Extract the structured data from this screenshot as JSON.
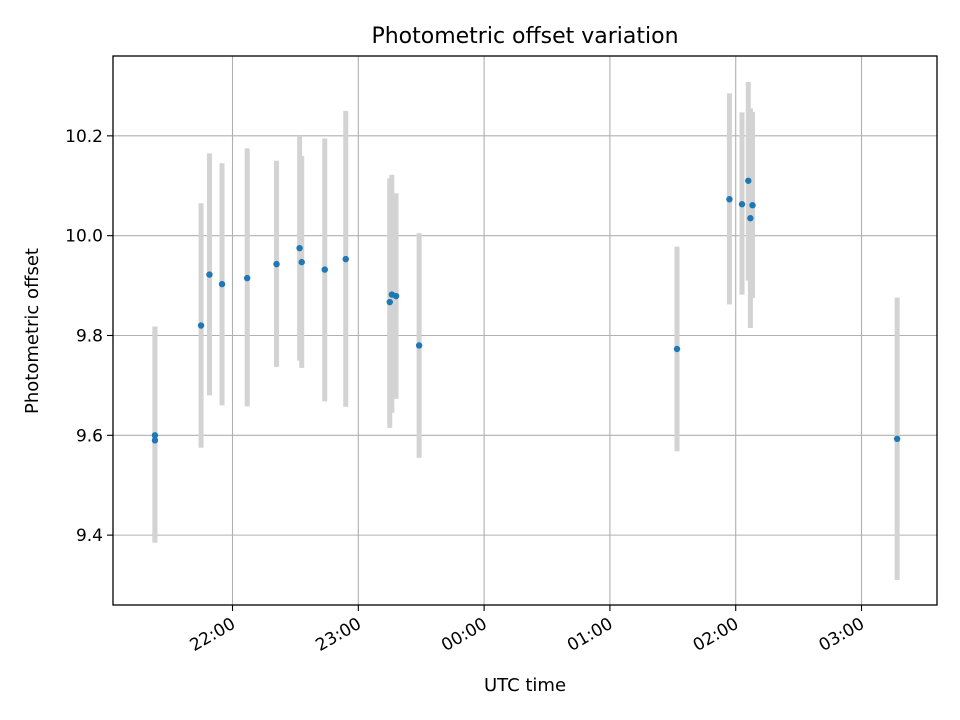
{
  "chart_data": {
    "type": "scatter",
    "title": "Photometric offset variation",
    "xlabel": "UTC time",
    "ylabel": "Photometric offset",
    "x_tick_labels": [
      "22:00",
      "23:00",
      "00:00",
      "01:00",
      "02:00",
      "03:00"
    ],
    "y_tick_labels": [
      "9.4",
      "9.6",
      "9.8",
      "10.0",
      "10.2"
    ],
    "y_ticks": [
      9.4,
      9.6,
      9.8,
      10.0,
      10.2
    ],
    "ylim": [
      9.26,
      10.36
    ],
    "xlim": [
      "21:03",
      "03:36"
    ],
    "grid": true,
    "marker_color": "#1f77b4",
    "errorbar_color": "#d3d3d3",
    "series": [
      {
        "points": [
          {
            "x": "21:23",
            "y": 9.59,
            "ylo": 9.385,
            "yhi": 9.818
          },
          {
            "x": "21:23",
            "y": 9.6,
            "ylo": 9.385,
            "yhi": 9.818
          },
          {
            "x": "21:45",
            "y": 9.82,
            "ylo": 9.575,
            "yhi": 10.065
          },
          {
            "x": "21:49",
            "y": 9.922,
            "ylo": 9.68,
            "yhi": 10.165
          },
          {
            "x": "21:55",
            "y": 9.903,
            "ylo": 9.66,
            "yhi": 10.145
          },
          {
            "x": "22:07",
            "y": 9.915,
            "ylo": 9.658,
            "yhi": 10.175
          },
          {
            "x": "22:21",
            "y": 9.943,
            "ylo": 9.737,
            "yhi": 10.15
          },
          {
            "x": "22:32",
            "y": 9.975,
            "ylo": 9.75,
            "yhi": 10.2
          },
          {
            "x": "22:33",
            "y": 9.947,
            "ylo": 9.735,
            "yhi": 10.16
          },
          {
            "x": "22:44",
            "y": 9.932,
            "ylo": 9.668,
            "yhi": 10.195
          },
          {
            "x": "22:54",
            "y": 9.953,
            "ylo": 9.657,
            "yhi": 10.25
          },
          {
            "x": "23:15",
            "y": 9.867,
            "ylo": 9.615,
            "yhi": 10.115
          },
          {
            "x": "23:16",
            "y": 9.882,
            "ylo": 9.645,
            "yhi": 10.122
          },
          {
            "x": "23:18",
            "y": 9.879,
            "ylo": 9.673,
            "yhi": 10.085
          },
          {
            "x": "23:29",
            "y": 9.78,
            "ylo": 9.555,
            "yhi": 10.005
          },
          {
            "x": "01:32",
            "y": 9.773,
            "ylo": 9.568,
            "yhi": 9.978
          },
          {
            "x": "01:57",
            "y": 10.073,
            "ylo": 9.862,
            "yhi": 10.285
          },
          {
            "x": "02:03",
            "y": 10.063,
            "ylo": 9.882,
            "yhi": 10.247
          },
          {
            "x": "02:06",
            "y": 10.11,
            "ylo": 9.91,
            "yhi": 10.308
          },
          {
            "x": "02:07",
            "y": 10.035,
            "ylo": 9.815,
            "yhi": 10.255
          },
          {
            "x": "02:08",
            "y": 10.061,
            "ylo": 9.875,
            "yhi": 10.248
          },
          {
            "x": "03:17",
            "y": 9.593,
            "ylo": 9.31,
            "yhi": 9.876
          }
        ]
      }
    ]
  }
}
